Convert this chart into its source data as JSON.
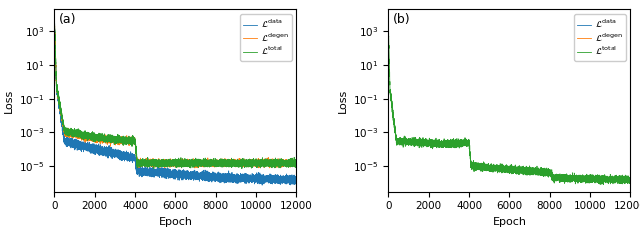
{
  "panel_a_label": "(a)",
  "panel_b_label": "(b)",
  "xlabel": "Epoch",
  "ylabel": "Loss",
  "xlim": [
    0,
    12000
  ],
  "ylim": [
    3e-07,
    20000.0
  ],
  "legend_entries": [
    {
      "label": "$\\mathcal{L}^\\mathrm{data}$",
      "color": "#1f77b4"
    },
    {
      "label": "$\\mathcal{L}^\\mathrm{degen}$",
      "color": "#ff7f0e"
    },
    {
      "label": "$\\mathcal{L}^\\mathrm{total}$",
      "color": "#2ca02c"
    }
  ],
  "n_epochs": 12000
}
